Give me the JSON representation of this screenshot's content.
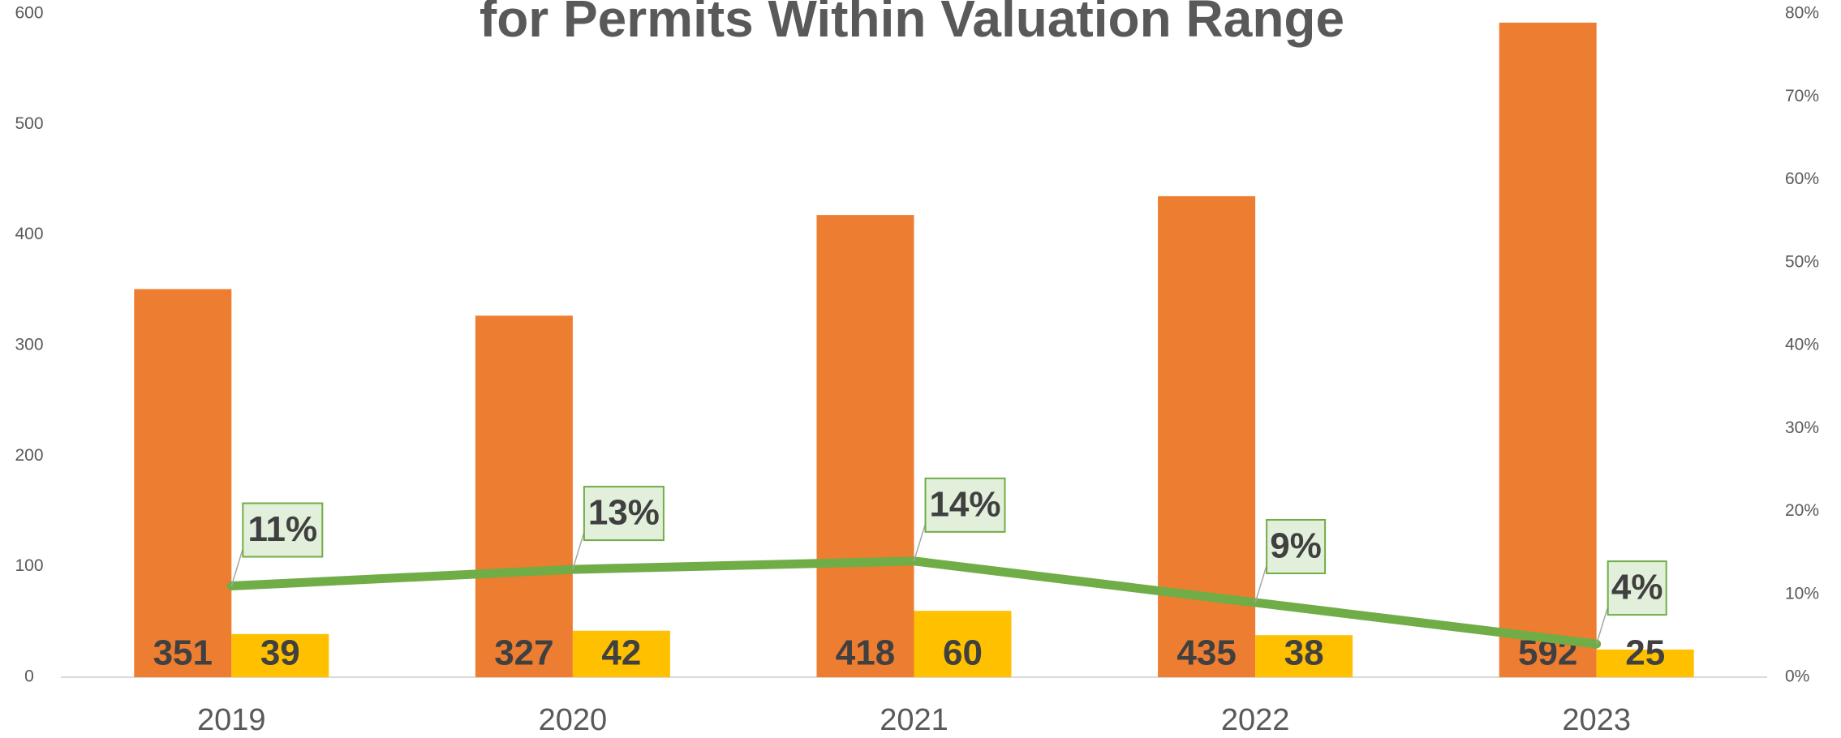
{
  "chart_data": {
    "type": "bar",
    "title": "for Permits Within Valuation Range",
    "categories": [
      "2019",
      "2020",
      "2021",
      "2022",
      "2023"
    ],
    "series": [
      {
        "color": "#ed7d31",
        "values": [
          351,
          327,
          418,
          435,
          592
        ]
      },
      {
        "color": "#ffc000",
        "values": [
          39,
          42,
          60,
          38,
          25
        ]
      },
      {
        "type": "line",
        "axis": "y2",
        "color": "#70ad47",
        "values": [
          11,
          13,
          14,
          9,
          4
        ],
        "value_labels": [
          "11%",
          "13%",
          "14%",
          "9%",
          "4%"
        ]
      }
    ],
    "ylim": [
      0,
      600
    ],
    "yticks": [
      0,
      100,
      200,
      300,
      400,
      500,
      600
    ],
    "y2lim": [
      0,
      80
    ],
    "y2ticks": [
      {
        "value": 0,
        "label": "0%"
      },
      {
        "value": 10,
        "label": "10%"
      },
      {
        "value": 20,
        "label": "20%"
      },
      {
        "value": 30,
        "label": "30%"
      },
      {
        "value": 40,
        "label": "40%"
      },
      {
        "value": 50,
        "label": "50%"
      },
      {
        "value": 60,
        "label": "60%"
      },
      {
        "value": 70,
        "label": "70%"
      },
      {
        "value": 80,
        "label": "80%"
      }
    ],
    "grid": false
  }
}
